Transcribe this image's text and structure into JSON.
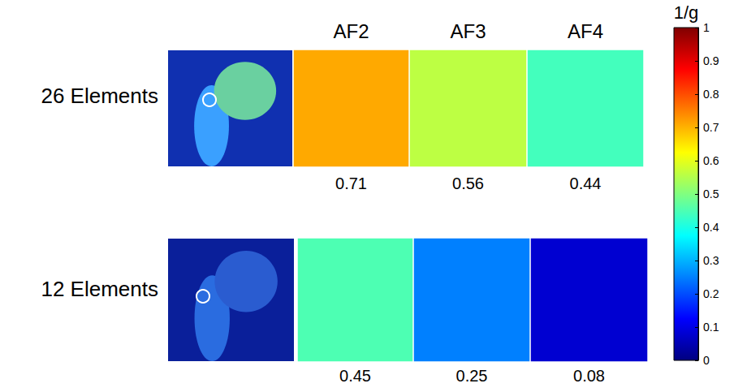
{
  "chart_data": {
    "type": "heatmap",
    "columns": [
      "AF2",
      "AF3",
      "AF4"
    ],
    "rows": [
      {
        "label": "26 Elements",
        "values": [
          0.71,
          0.56,
          0.44
        ]
      },
      {
        "label": "12 Elements",
        "values": [
          0.45,
          0.25,
          0.08
        ]
      }
    ],
    "colorbar_title": "1/g",
    "colorbar_range": [
      0,
      1
    ],
    "colorbar_ticks": [
      0,
      0.1,
      0.2,
      0.3,
      0.4,
      0.5,
      0.6,
      0.7,
      0.8,
      0.9,
      1
    ]
  }
}
